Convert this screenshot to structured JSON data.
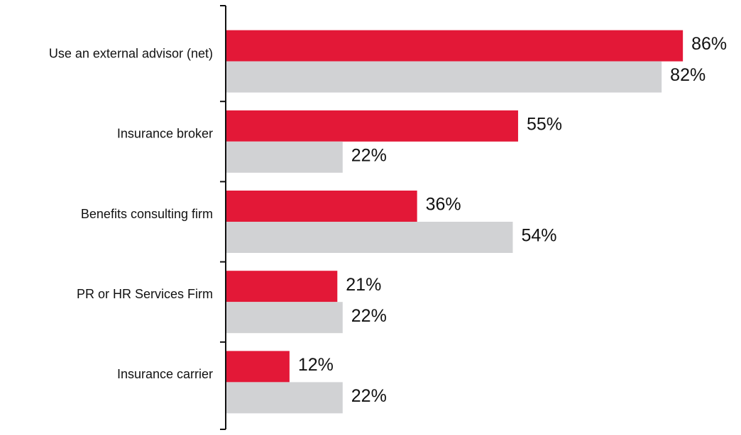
{
  "chart_data": {
    "type": "bar",
    "orientation": "horizontal",
    "categories": [
      "Use an external advisor (net)",
      "Insurance broker",
      "Benefits consulting firm",
      "PR or HR Services Firm",
      "Insurance carrier"
    ],
    "series": [
      {
        "color": "#e31837",
        "values": [
          86,
          55,
          36,
          21,
          12
        ],
        "value_labels": [
          "86%",
          "55%",
          "36%",
          "21%",
          "12%"
        ]
      },
      {
        "color": "#d1d2d4",
        "values": [
          82,
          22,
          54,
          22,
          22
        ],
        "value_labels": [
          "82%",
          "22%",
          "54%",
          "22%",
          "22%"
        ]
      }
    ],
    "xlim": [
      0,
      100
    ]
  }
}
